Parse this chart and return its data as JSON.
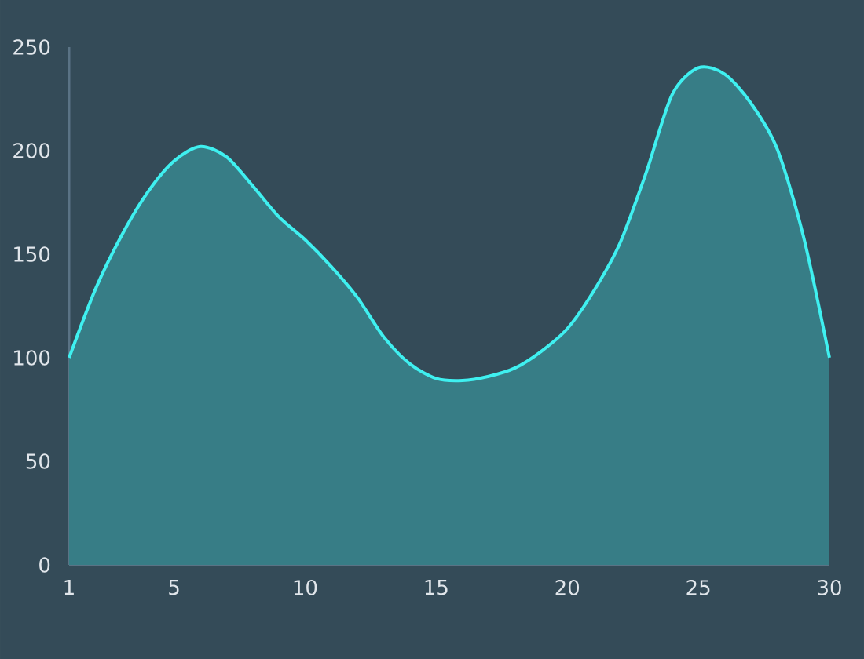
{
  "chart_data": {
    "type": "area",
    "x": [
      1,
      2,
      3,
      4,
      5,
      6,
      7,
      8,
      9,
      10,
      11,
      12,
      13,
      14,
      15,
      16,
      17,
      18,
      19,
      20,
      21,
      22,
      23,
      24,
      25,
      26,
      27,
      28,
      29,
      30
    ],
    "series": [
      {
        "color": "#3ff0f0",
        "values": [
          100,
          133,
          159,
          180,
          195,
          202,
          197,
          183,
          168,
          157,
          144,
          129,
          110,
          97,
          90,
          89,
          91,
          95,
          103,
          114,
          132,
          155,
          189,
          227,
          240,
          237,
          223,
          201,
          159,
          100
        ]
      }
    ],
    "xlim": [
      1,
      30
    ],
    "ylim": [
      0,
      250
    ],
    "xticks": [
      1,
      5,
      10,
      15,
      20,
      25,
      30
    ],
    "yticks": [
      0,
      50,
      100,
      150,
      200,
      250
    ],
    "grid": false,
    "marker": "none",
    "line_style": "solid"
  }
}
